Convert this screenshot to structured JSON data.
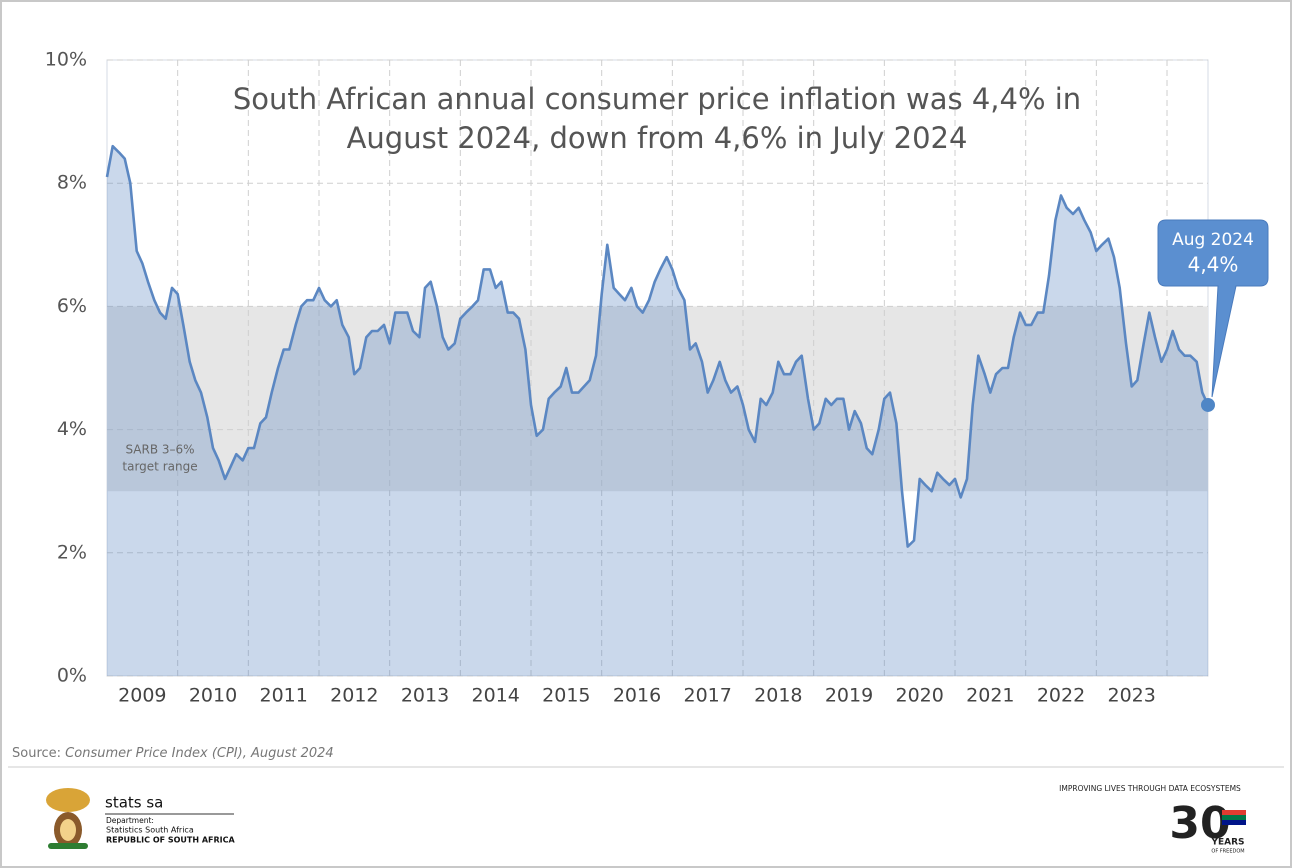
{
  "chart_data": {
    "type": "area",
    "title_lines": [
      "South African annual consumer price inflation was 4,4% in",
      "August 2024, down from 4,6% in July 2024"
    ],
    "x": [
      2009,
      2009.08,
      2009.17,
      2009.25,
      2009.33,
      2009.42,
      2009.5,
      2009.58,
      2009.67,
      2009.75,
      2009.83,
      2009.92,
      2010,
      2010.08,
      2010.17,
      2010.25,
      2010.33,
      2010.42,
      2010.5,
      2010.58,
      2010.67,
      2010.75,
      2010.83,
      2010.92,
      2011,
      2011.08,
      2011.17,
      2011.25,
      2011.33,
      2011.42,
      2011.5,
      2011.58,
      2011.67,
      2011.75,
      2011.83,
      2011.92,
      2012,
      2012.08,
      2012.17,
      2012.25,
      2012.33,
      2012.42,
      2012.5,
      2012.58,
      2012.67,
      2012.75,
      2012.83,
      2012.92,
      2013,
      2013.08,
      2013.17,
      2013.25,
      2013.33,
      2013.42,
      2013.5,
      2013.58,
      2013.67,
      2013.75,
      2013.83,
      2013.92,
      2014,
      2014.08,
      2014.17,
      2014.25,
      2014.33,
      2014.42,
      2014.5,
      2014.58,
      2014.67,
      2014.75,
      2014.83,
      2014.92,
      2015,
      2015.08,
      2015.17,
      2015.25,
      2015.33,
      2015.42,
      2015.5,
      2015.58,
      2015.67,
      2015.75,
      2015.83,
      2015.92,
      2016,
      2016.08,
      2016.17,
      2016.25,
      2016.33,
      2016.42,
      2016.5,
      2016.58,
      2016.67,
      2016.75,
      2016.83,
      2016.92,
      2017,
      2017.08,
      2017.17,
      2017.25,
      2017.33,
      2017.42,
      2017.5,
      2017.58,
      2017.67,
      2017.75,
      2017.83,
      2017.92,
      2018,
      2018.08,
      2018.17,
      2018.25,
      2018.33,
      2018.42,
      2018.5,
      2018.58,
      2018.67,
      2018.75,
      2018.83,
      2018.92,
      2019,
      2019.08,
      2019.17,
      2019.25,
      2019.33,
      2019.42,
      2019.5,
      2019.58,
      2019.67,
      2019.75,
      2019.83,
      2019.92,
      2020,
      2020.08,
      2020.17,
      2020.25,
      2020.33,
      2020.42,
      2020.5,
      2020.58,
      2020.67,
      2020.75,
      2020.83,
      2020.92,
      2021,
      2021.08,
      2021.17,
      2021.25,
      2021.33,
      2021.42,
      2021.5,
      2021.58,
      2021.67,
      2021.75,
      2021.83,
      2021.92,
      2022,
      2022.08,
      2022.17,
      2022.25,
      2022.33,
      2022.42,
      2022.5,
      2022.58,
      2022.67,
      2022.75,
      2022.83,
      2022.92,
      2023,
      2023.08,
      2023.17,
      2023.25,
      2023.33,
      2023.42,
      2023.5,
      2023.58,
      2023.67,
      2023.75,
      2023.83,
      2023.92,
      2024,
      2024.08,
      2024.17,
      2024.25,
      2024.33,
      2024.42,
      2024.5,
      2024.58
    ],
    "values": [
      8.1,
      8.6,
      8.5,
      8.4,
      8.0,
      6.9,
      6.7,
      6.4,
      6.1,
      5.9,
      5.8,
      6.3,
      6.2,
      5.7,
      5.1,
      4.8,
      4.6,
      4.2,
      3.7,
      3.5,
      3.2,
      3.4,
      3.6,
      3.5,
      3.7,
      3.7,
      4.1,
      4.2,
      4.6,
      5.0,
      5.3,
      5.3,
      5.7,
      6.0,
      6.1,
      6.1,
      6.3,
      6.1,
      6.0,
      6.1,
      5.7,
      5.5,
      4.9,
      5.0,
      5.5,
      5.6,
      5.6,
      5.7,
      5.4,
      5.9,
      5.9,
      5.9,
      5.6,
      5.5,
      6.3,
      6.4,
      6.0,
      5.5,
      5.3,
      5.4,
      5.8,
      5.9,
      6.0,
      6.1,
      6.6,
      6.6,
      6.3,
      6.4,
      5.9,
      5.9,
      5.8,
      5.3,
      4.4,
      3.9,
      4.0,
      4.5,
      4.6,
      4.7,
      5.0,
      4.6,
      4.6,
      4.7,
      4.8,
      5.2,
      6.2,
      7.0,
      6.3,
      6.2,
      6.1,
      6.3,
      6.0,
      5.9,
      6.1,
      6.4,
      6.6,
      6.8,
      6.6,
      6.3,
      6.1,
      5.3,
      5.4,
      5.1,
      4.6,
      4.8,
      5.1,
      4.8,
      4.6,
      4.7,
      4.4,
      4.0,
      3.8,
      4.5,
      4.4,
      4.6,
      5.1,
      4.9,
      4.9,
      5.1,
      5.2,
      4.5,
      4.0,
      4.1,
      4.5,
      4.4,
      4.5,
      4.5,
      4.0,
      4.3,
      4.1,
      3.7,
      3.6,
      4.0,
      4.5,
      4.6,
      4.1,
      3.0,
      2.1,
      2.2,
      3.2,
      3.1,
      3.0,
      3.3,
      3.2,
      3.1,
      3.2,
      2.9,
      3.2,
      4.4,
      5.2,
      4.9,
      4.6,
      4.9,
      5.0,
      5.0,
      5.5,
      5.9,
      5.7,
      5.7,
      5.9,
      5.9,
      6.5,
      7.4,
      7.8,
      7.6,
      7.5,
      7.6,
      7.4,
      7.2,
      6.9,
      7.0,
      7.1,
      6.8,
      6.3,
      5.4,
      4.7,
      4.8,
      5.4,
      5.9,
      5.5,
      5.1,
      5.3,
      5.6,
      5.3,
      5.2,
      5.2,
      5.1,
      4.6,
      4.4
    ],
    "value_labels": [
      null,
      null,
      null,
      null,
      null,
      null,
      null,
      null,
      null,
      null,
      null,
      null,
      null,
      null,
      null,
      null,
      null,
      null,
      null,
      null,
      null,
      null,
      null,
      null,
      null,
      null,
      null,
      null,
      null,
      null,
      null,
      null,
      null,
      null,
      null,
      null,
      null,
      null,
      null,
      null,
      null,
      null,
      null,
      null,
      null,
      null,
      null,
      null,
      null,
      null,
      null,
      null,
      null,
      null,
      null,
      null,
      null,
      null,
      null,
      null,
      null,
      null,
      null,
      null,
      null,
      null,
      null,
      null,
      null,
      null,
      null,
      null,
      null,
      null,
      null,
      null,
      null,
      null,
      null,
      null,
      null,
      null,
      null,
      null,
      null,
      null,
      null,
      null,
      null,
      null,
      null,
      null,
      null,
      null,
      null,
      null,
      null,
      null,
      null,
      null,
      null,
      null,
      null,
      null,
      null,
      null,
      null,
      null,
      null,
      null,
      null,
      null,
      null,
      null,
      null,
      null,
      null,
      null,
      null,
      null,
      null,
      null,
      null,
      null,
      null,
      null,
      null,
      null,
      null,
      null,
      null,
      null,
      null,
      null,
      null,
      null,
      null,
      null,
      null,
      null,
      null,
      null,
      null,
      null,
      null,
      null,
      null,
      null,
      null,
      null,
      null,
      null,
      null,
      null,
      null,
      null,
      null,
      null,
      null,
      null,
      null,
      null,
      null,
      null,
      null,
      null,
      null,
      null,
      null,
      null,
      null,
      null,
      null,
      null,
      null,
      null,
      null,
      null,
      null,
      null,
      null,
      null,
      null,
      null,
      null,
      null,
      null,
      "4,4%"
    ],
    "callout_title": "Aug 2024",
    "color": "#5b87c2",
    "xlim": [
      2009,
      2024.58
    ],
    "xticks": [
      {
        "value": 2009.5,
        "label": "2009"
      },
      {
        "value": 2010.5,
        "label": "2010"
      },
      {
        "value": 2011.5,
        "label": "2011"
      },
      {
        "value": 2012.5,
        "label": "2012"
      },
      {
        "value": 2013.5,
        "label": "2013"
      },
      {
        "value": 2014.5,
        "label": "2014"
      },
      {
        "value": 2015.5,
        "label": "2015"
      },
      {
        "value": 2016.5,
        "label": "2016"
      },
      {
        "value": 2017.5,
        "label": "2017"
      },
      {
        "value": 2018.5,
        "label": "2018"
      },
      {
        "value": 2019.5,
        "label": "2019"
      },
      {
        "value": 2020.5,
        "label": "2020"
      },
      {
        "value": 2021.5,
        "label": "2021"
      },
      {
        "value": 2022.5,
        "label": "2022"
      },
      {
        "value": 2023.5,
        "label": "2023"
      }
    ],
    "xgrid": [
      2010,
      2011,
      2012,
      2013,
      2014,
      2015,
      2016,
      2017,
      2018,
      2019,
      2020,
      2021,
      2022,
      2023,
      2024
    ],
    "ylim": [
      0,
      10
    ],
    "yticks": [
      {
        "value": 0,
        "label": "0%"
      },
      {
        "value": 2,
        "label": "2%"
      },
      {
        "value": 4,
        "label": "4%"
      },
      {
        "value": 6,
        "label": "6%"
      },
      {
        "value": 8,
        "label": "8%"
      },
      {
        "value": 10,
        "label": "10%"
      }
    ],
    "grid": true,
    "target_band": [
      3,
      6
    ],
    "band_label_lines": [
      "SARB 3–6%",
      "target range"
    ]
  },
  "source": {
    "prefix": "Source:",
    "text": "Consumer Price Index (CPI), August 2024"
  },
  "footer": {
    "brand": "stats sa",
    "dept": "Department:",
    "org": "Statistics South Africa",
    "country": "REPUBLIC OF SOUTH AFRICA",
    "tagline": "IMPROVING LIVES THROUGH DATA ECOSYSTEMS",
    "badge_number": "30",
    "badge_years": "YEARS",
    "badge_sub": "OF FREEDOM"
  }
}
